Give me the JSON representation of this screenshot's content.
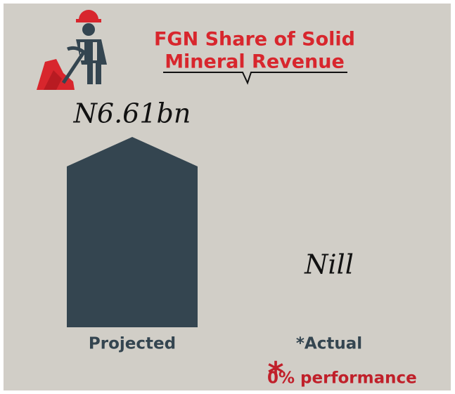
{
  "chart_data": {
    "type": "bar",
    "title": [
      "FGN Share of Solid",
      "Mineral Revenue"
    ],
    "categories": [
      "Projected",
      "*Actual"
    ],
    "values": [
      6.61,
      0
    ],
    "value_labels": [
      "N6.61bn",
      "Nill"
    ],
    "color": "#344550",
    "ylim": [
      0,
      6.61
    ],
    "annotation": {
      "marker": "*",
      "text": "0% performance"
    }
  }
}
